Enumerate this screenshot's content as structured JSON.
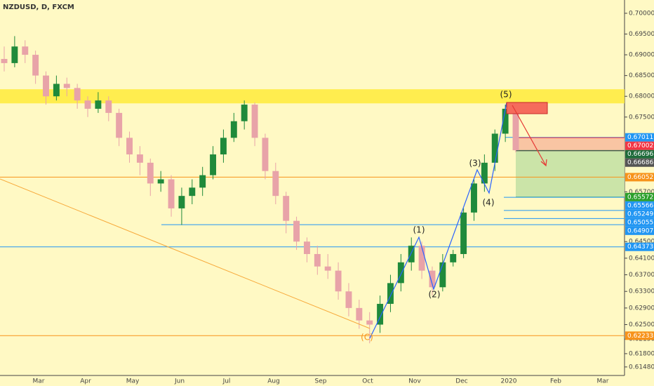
{
  "chart_data": {
    "type": "candlestick",
    "title": "NZDUSD, D, FXCM",
    "categories": [
      "Mar",
      "Apr",
      "May",
      "Jun",
      "Jul",
      "Aug",
      "Sep",
      "Oct",
      "Nov",
      "Dec",
      "2020",
      "Feb",
      "Mar"
    ],
    "open": [
      0.689,
      0.688,
      0.692,
      0.69,
      0.685,
      0.68,
      0.683,
      0.682,
      0.679,
      0.677,
      0.679,
      0.676,
      0.67,
      0.666,
      0.664,
      0.659,
      0.66,
      0.653,
      0.656,
      0.658,
      0.661,
      0.666,
      0.67,
      0.674,
      0.678,
      0.67,
      0.662,
      0.656,
      0.65,
      0.645,
      0.642,
      0.639,
      0.638,
      0.633,
      0.629,
      0.626,
      0.625,
      0.63,
      0.635,
      0.64,
      0.644,
      0.638,
      0.634,
      0.64,
      0.642,
      0.652,
      0.659,
      0.664,
      0.671,
      0.677
    ],
    "high": [
      0.692,
      0.6945,
      0.6935,
      0.691,
      0.686,
      0.685,
      0.6845,
      0.683,
      0.68,
      0.681,
      0.68,
      0.677,
      0.6715,
      0.668,
      0.665,
      0.662,
      0.661,
      0.658,
      0.66,
      0.663,
      0.668,
      0.672,
      0.676,
      0.679,
      0.6785,
      0.671,
      0.664,
      0.657,
      0.651,
      0.646,
      0.644,
      0.642,
      0.64,
      0.635,
      0.631,
      0.628,
      0.632,
      0.637,
      0.642,
      0.646,
      0.645,
      0.639,
      0.642,
      0.643,
      0.653,
      0.66,
      0.666,
      0.672,
      0.678,
      0.6775
    ],
    "low": [
      0.686,
      0.687,
      0.688,
      0.683,
      0.678,
      0.679,
      0.68,
      0.677,
      0.675,
      0.676,
      0.674,
      0.668,
      0.664,
      0.661,
      0.656,
      0.657,
      0.651,
      0.649,
      0.654,
      0.656,
      0.66,
      0.664,
      0.669,
      0.672,
      0.668,
      0.66,
      0.654,
      0.647,
      0.643,
      0.64,
      0.637,
      0.636,
      0.631,
      0.627,
      0.624,
      0.6205,
      0.623,
      0.628,
      0.633,
      0.638,
      0.636,
      0.632,
      0.633,
      0.639,
      0.641,
      0.65,
      0.657,
      0.662,
      0.669,
      0.6665
    ],
    "close": [
      0.688,
      0.692,
      0.69,
      0.685,
      0.68,
      0.683,
      0.682,
      0.679,
      0.677,
      0.679,
      0.676,
      0.67,
      0.666,
      0.664,
      0.659,
      0.66,
      0.653,
      0.656,
      0.658,
      0.661,
      0.666,
      0.67,
      0.674,
      0.678,
      0.67,
      0.662,
      0.656,
      0.65,
      0.645,
      0.642,
      0.639,
      0.638,
      0.633,
      0.629,
      0.626,
      0.625,
      0.63,
      0.635,
      0.64,
      0.644,
      0.638,
      0.634,
      0.64,
      0.642,
      0.652,
      0.659,
      0.664,
      0.671,
      0.677,
      0.667
    ],
    "up_color": "#1f8a3b",
    "down_color": "#e8a3a8",
    "ylim": [
      0.6119,
      0.7032
    ],
    "yticks": [
      {
        "value": 0.7,
        "label": "0.70000"
      },
      {
        "value": 0.695,
        "label": "0.69500"
      },
      {
        "value": 0.69,
        "label": "0.69000"
      },
      {
        "value": 0.685,
        "label": "0.68500"
      },
      {
        "value": 0.68,
        "label": "0.68000"
      },
      {
        "value": 0.675,
        "label": "0.67500"
      },
      {
        "value": 0.657,
        "label": "0.65700"
      },
      {
        "value": 0.645,
        "label": "0.64500"
      },
      {
        "value": 0.641,
        "label": "0.64100"
      },
      {
        "value": 0.637,
        "label": "0.63700"
      },
      {
        "value": 0.633,
        "label": "0.63300"
      },
      {
        "value": 0.629,
        "label": "0.62900"
      },
      {
        "value": 0.625,
        "label": "0.62500"
      },
      {
        "value": 0.6215,
        "label": "0.62150"
      },
      {
        "value": 0.618,
        "label": "0.61800"
      },
      {
        "value": 0.6148,
        "label": "0.61480"
      }
    ],
    "zone": [
      0.6783,
      0.6817
    ],
    "levels": [
      {
        "value": 0.67011,
        "color": "#2196f3"
      },
      {
        "value": 0.67002,
        "color": "#f23645"
      },
      {
        "value": 0.66696,
        "color": "#1e6b3a"
      },
      {
        "value": 0.66686,
        "color": "#555555"
      },
      {
        "value": 0.66052,
        "color": "#f7931a"
      },
      {
        "value": 0.65572,
        "color": "#2ca02c"
      },
      {
        "value": 0.65566,
        "color": "#2196f3"
      },
      {
        "value": 0.65249,
        "color": "#2196f3"
      },
      {
        "value": 0.65055,
        "color": "#2196f3"
      },
      {
        "value": 0.64907,
        "color": "#2196f3"
      },
      {
        "value": 0.64373,
        "color": "#2196f3"
      },
      {
        "value": 0.62233,
        "color": "#f7931a"
      }
    ],
    "wave_labels": [
      "(C)",
      "(1)",
      "(2)",
      "(3)",
      "(4)",
      "(5)"
    ]
  }
}
